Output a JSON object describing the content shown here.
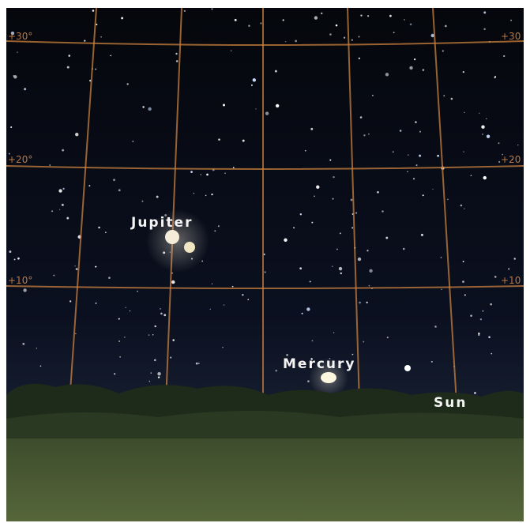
{
  "grid_labels": {
    "left": [
      "+30°",
      "+20°",
      "+10°"
    ],
    "right": [
      "+30",
      "+20",
      "+10"
    ]
  },
  "objects": [
    {
      "label": "Jupiter"
    },
    {
      "label": "Mercury"
    },
    {
      "label": "Sun"
    }
  ]
}
